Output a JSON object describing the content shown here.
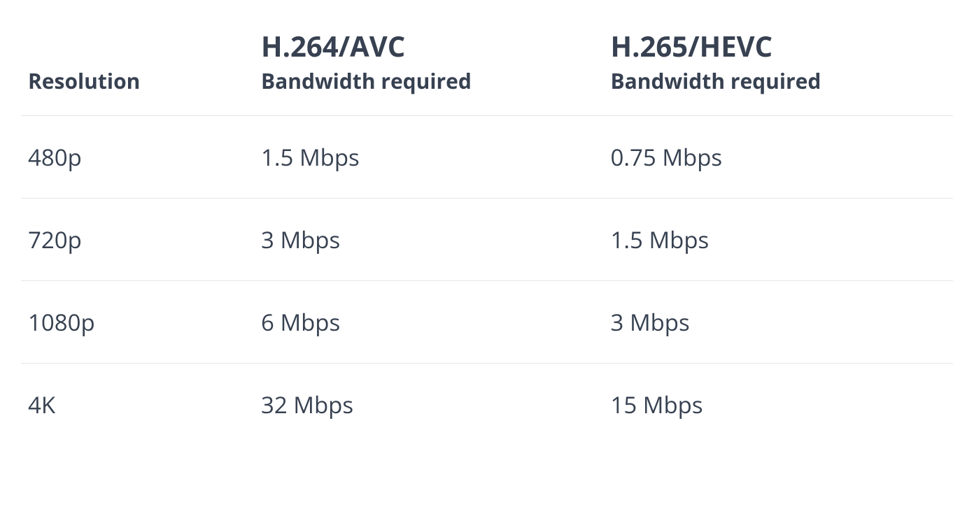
{
  "table": {
    "type": "table",
    "background_color": "#ffffff",
    "border_color": "#e5e7eb",
    "text_color": "#374151",
    "header_title_fontsize": 40,
    "header_sub_fontsize": 30,
    "cell_fontsize": 33,
    "font_weight_header": 700,
    "font_weight_cell": 400,
    "columns": [
      {
        "key": "resolution",
        "title": "",
        "sub": "Resolution",
        "width_pct": 25
      },
      {
        "key": "h264",
        "title": "H.264/AVC",
        "sub": "Bandwidth required",
        "width_pct": 37.5
      },
      {
        "key": "h265",
        "title": "H.265/HEVC",
        "sub": "Bandwidth required",
        "width_pct": 37.5
      }
    ],
    "rows": [
      {
        "resolution": "480p",
        "h264": "1.5 Mbps",
        "h265": "0.75 Mbps"
      },
      {
        "resolution": "720p",
        "h264": "3 Mbps",
        "h265": "1.5 Mbps"
      },
      {
        "resolution": "1080p",
        "h264": "6 Mbps",
        "h265": "3 Mbps"
      },
      {
        "resolution": "4K",
        "h264": "32 Mbps",
        "h265": "15 Mbps"
      }
    ]
  }
}
